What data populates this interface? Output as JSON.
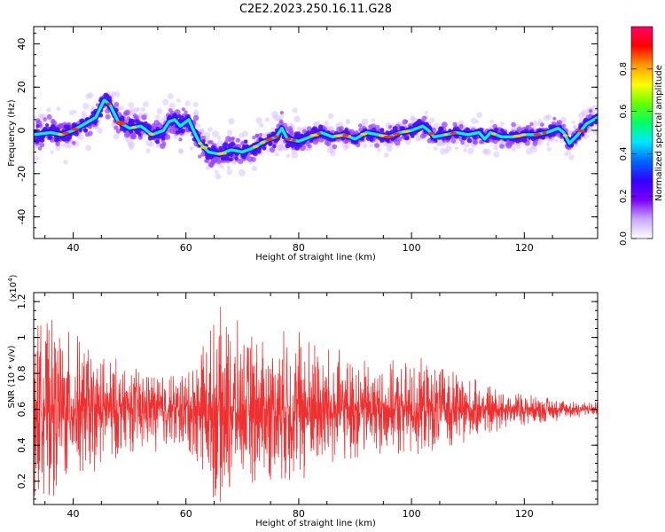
{
  "title": "C2E2.2023.250.16.11.G28",
  "chart_data": [
    {
      "type": "heatmap",
      "xlabel": "Height of straight line (km)",
      "ylabel": "Frequency (Hz)",
      "xlim": [
        33,
        133
      ],
      "ylim": [
        -50,
        48
      ],
      "xticks": [
        40,
        60,
        80,
        100,
        120
      ],
      "yticks": [
        -40,
        -20,
        0,
        20,
        40
      ],
      "grid": false,
      "colorbar": {
        "label": "Normalized spectral amplitude",
        "range": [
          0,
          1
        ],
        "ticks": [
          0.0,
          0.2,
          0.4,
          0.6,
          0.8
        ],
        "colors": [
          "#ffffff",
          "#c9a8ff",
          "#7a00ff",
          "#3300ff",
          "#0066ff",
          "#00e6ff",
          "#00ff66",
          "#66ff00",
          "#ffff00",
          "#ff9900",
          "#ff0000",
          "#ff0066"
        ]
      },
      "ridge": {
        "x": [
          33,
          36,
          38,
          40,
          42,
          44,
          45.5,
          46.5,
          48,
          50,
          52,
          54,
          56,
          57,
          58,
          59,
          60.5,
          61.5,
          62.5,
          64,
          66,
          68,
          70,
          72,
          74,
          76,
          77,
          78,
          80,
          82,
          84,
          86,
          88,
          90,
          92,
          94,
          96,
          98,
          100,
          102,
          103,
          104,
          106,
          108,
          110,
          112,
          113,
          114,
          116,
          118,
          120,
          122,
          124,
          125,
          126,
          127,
          128,
          129.5,
          131,
          133
        ],
        "y": [
          -2,
          -1,
          -2,
          0,
          3,
          6,
          14,
          12,
          4,
          1,
          2,
          -2,
          0,
          4,
          5,
          2,
          5,
          -1,
          -6,
          -10,
          -11,
          -9,
          -10,
          -8,
          -5,
          -3,
          1,
          -4,
          -5,
          -3,
          -1,
          -3,
          -2,
          -4,
          -1,
          -2,
          -3,
          -1,
          0,
          2,
          0,
          -3,
          -2,
          -1,
          -2,
          -1,
          -4,
          -1,
          -3,
          -3,
          -2,
          -2,
          -1,
          0,
          1,
          -1,
          -6,
          -2,
          3,
          6
        ]
      }
    },
    {
      "type": "line",
      "xlabel": "Height of straight line (km)",
      "ylabel": "SNR (10 * v/v)",
      "yscale_label": "(x10",
      "yscale_exp": "4",
      "yscale_close": ")",
      "xlim": [
        33,
        133
      ],
      "ylim": [
        0.07,
        1.25
      ],
      "xticks": [
        40,
        60,
        80,
        100,
        120
      ],
      "yticks": [
        0.2,
        0.4,
        0.6,
        0.8,
        1.0,
        1.2
      ],
      "series": [
        {
          "color": "#f03030",
          "mean": 0.6,
          "envelope_x": [
            33,
            36,
            40,
            45,
            50,
            55,
            60,
            63,
            66,
            70,
            75,
            80,
            85,
            90,
            95,
            100,
            105,
            110,
            115,
            120,
            125,
            130,
            133
          ],
          "envelope_amp": [
            0.5,
            0.48,
            0.42,
            0.32,
            0.25,
            0.22,
            0.22,
            0.4,
            0.55,
            0.45,
            0.4,
            0.48,
            0.35,
            0.28,
            0.25,
            0.28,
            0.25,
            0.18,
            0.12,
            0.09,
            0.07,
            0.05,
            0.04
          ]
        }
      ]
    }
  ]
}
